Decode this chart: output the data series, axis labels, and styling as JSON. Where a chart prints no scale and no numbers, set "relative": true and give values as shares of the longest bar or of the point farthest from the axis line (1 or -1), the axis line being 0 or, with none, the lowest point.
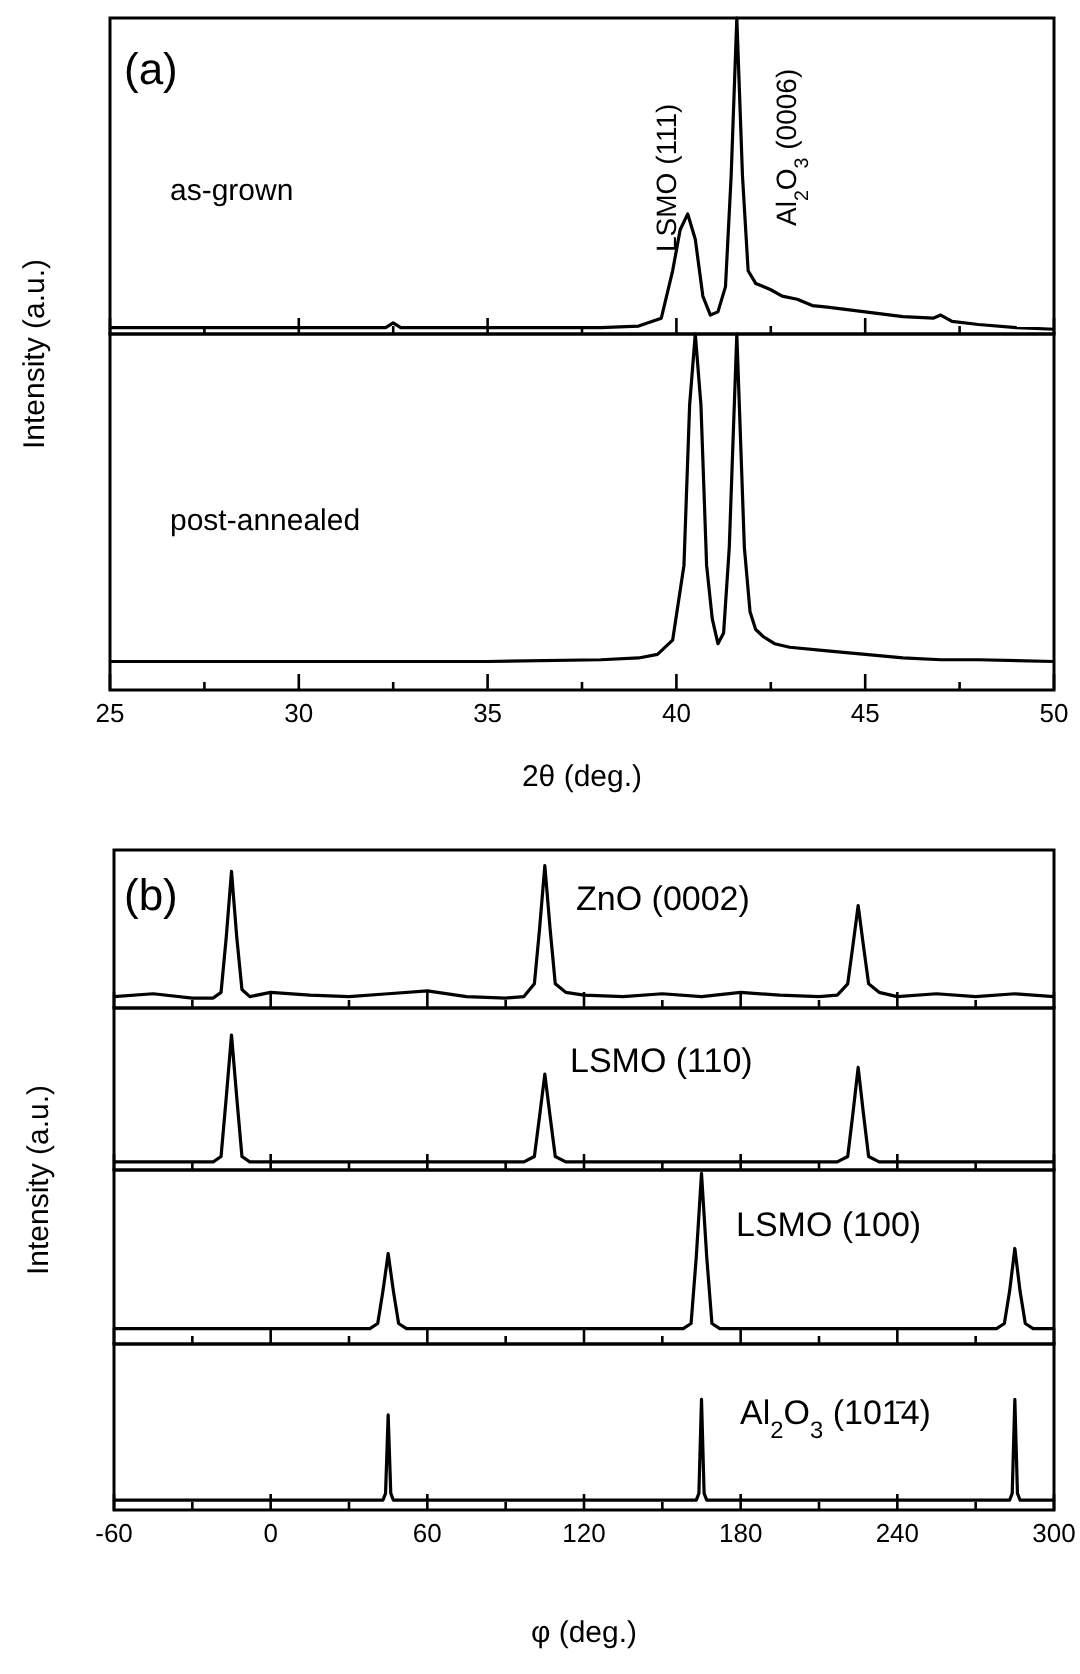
{
  "chart_data": [
    {
      "type": "line",
      "relative": true,
      "ylabel": "Intensity (a.u.)",
      "annotations": [
        "(a)",
        "as-grown",
        "LSMO (111)",
        "Al$_{2}$O$_{3}$ (0006)"
      ],
      "color": "#000000",
      "xlim": [
        25,
        50
      ],
      "xticks": [
        25,
        {
          "value": 27.5,
          "label": null
        },
        30,
        {
          "value": 32.5,
          "label": null
        },
        35,
        {
          "value": 37.5,
          "label": null
        },
        40,
        {
          "value": 42.5,
          "label": null
        },
        45,
        {
          "value": 47.5,
          "label": null
        },
        50
      ],
      "tick_labels": false,
      "x": [
        25,
        27,
        29,
        31,
        32.3,
        32.5,
        32.7,
        34,
        36,
        38,
        39,
        39.6,
        39.9,
        40.1,
        40.3,
        40.5,
        40.7,
        40.9,
        41.1,
        41.3,
        41.45,
        41.6,
        41.75,
        41.9,
        42.1,
        42.3,
        42.5,
        42.8,
        43.2,
        43.6,
        44,
        45,
        46,
        46.8,
        47,
        47.3,
        48,
        49,
        50
      ],
      "values": [
        0.02,
        0.02,
        0.02,
        0.02,
        0.02,
        0.035,
        0.02,
        0.02,
        0.02,
        0.02,
        0.025,
        0.05,
        0.2,
        0.33,
        0.38,
        0.3,
        0.12,
        0.06,
        0.07,
        0.15,
        0.5,
        1,
        0.5,
        0.2,
        0.16,
        0.15,
        0.14,
        0.12,
        0.11,
        0.09,
        0.085,
        0.07,
        0.055,
        0.05,
        0.06,
        0.04,
        0.03,
        0.02,
        0.015
      ]
    },
    {
      "type": "line",
      "relative": true,
      "xlabel": "2θ (deg.)",
      "annotations": [
        "post-annealed"
      ],
      "color": "#000000",
      "xlim": [
        25,
        50
      ],
      "xticks": [
        25,
        {
          "value": 27.5,
          "label": null
        },
        30,
        {
          "value": 32.5,
          "label": null
        },
        35,
        {
          "value": 37.5,
          "label": null
        },
        40,
        {
          "value": 42.5,
          "label": null
        },
        45,
        {
          "value": 47.5,
          "label": null
        },
        50
      ],
      "tick_labels": "x",
      "x": [
        25,
        30,
        35,
        38,
        39,
        39.5,
        39.9,
        40.2,
        40.35,
        40.5,
        40.65,
        40.8,
        40.95,
        41.1,
        41.25,
        41.4,
        41.6,
        41.8,
        41.95,
        42.1,
        42.3,
        42.6,
        43,
        44,
        45,
        46,
        47,
        48,
        50
      ],
      "values": [
        0.08,
        0.08,
        0.08,
        0.085,
        0.09,
        0.1,
        0.14,
        0.35,
        0.8,
        1,
        0.8,
        0.35,
        0.2,
        0.13,
        0.16,
        0.4,
        1,
        0.4,
        0.22,
        0.17,
        0.15,
        0.13,
        0.12,
        0.11,
        0.1,
        0.09,
        0.085,
        0.085,
        0.08
      ]
    },
    {
      "type": "line",
      "relative": true,
      "ylabel": "Intensity (a.u.)",
      "annotations": [
        "(b)",
        "ZnO (0002)"
      ],
      "color": "#000000",
      "xlim": [
        -60,
        300
      ],
      "xticks": [
        -60,
        {
          "value": -30,
          "label": null
        },
        0,
        {
          "value": 30,
          "label": null
        },
        60,
        {
          "value": 90,
          "label": null
        },
        120,
        {
          "value": 150,
          "label": null
        },
        180,
        {
          "value": 210,
          "label": null
        },
        240,
        {
          "value": 270,
          "label": null
        },
        300
      ],
      "tick_labels": false,
      "x": [
        -60,
        -45,
        -30,
        -22,
        -19,
        -17,
        -15,
        -13,
        -11,
        -8,
        0,
        15,
        30,
        45,
        60,
        75,
        90,
        97,
        101,
        103,
        105,
        107,
        109,
        113,
        120,
        135,
        150,
        165,
        180,
        195,
        210,
        217,
        221,
        223,
        225,
        227,
        229,
        233,
        240,
        255,
        270,
        285,
        300
      ],
      "values": [
        0.08,
        0.1,
        0.07,
        0.07,
        0.11,
        0.5,
        0.96,
        0.5,
        0.13,
        0.08,
        0.11,
        0.09,
        0.08,
        0.1,
        0.12,
        0.08,
        0.07,
        0.08,
        0.17,
        0.56,
        1,
        0.56,
        0.17,
        0.11,
        0.09,
        0.08,
        0.1,
        0.08,
        0.11,
        0.09,
        0.08,
        0.09,
        0.17,
        0.44,
        0.72,
        0.44,
        0.17,
        0.11,
        0.08,
        0.1,
        0.08,
        0.1,
        0.08
      ]
    },
    {
      "type": "line",
      "relative": true,
      "annotations": [
        "LSMO (110)"
      ],
      "color": "#000000",
      "xlim": [
        -60,
        300
      ],
      "xticks": [
        -60,
        {
          "value": -30,
          "label": null
        },
        0,
        {
          "value": 30,
          "label": null
        },
        60,
        {
          "value": 90,
          "label": null
        },
        120,
        {
          "value": 150,
          "label": null
        },
        180,
        {
          "value": 210,
          "label": null
        },
        240,
        {
          "value": 270,
          "label": null
        },
        300
      ],
      "tick_labels": false,
      "x": [
        -60,
        -30,
        -22,
        -19,
        -17,
        -15,
        -13,
        -11,
        -8,
        0,
        30,
        60,
        90,
        97,
        101,
        103,
        105,
        107,
        109,
        113,
        120,
        150,
        180,
        210,
        217,
        221,
        223,
        225,
        227,
        229,
        233,
        240,
        270,
        300
      ],
      "values": [
        0.06,
        0.06,
        0.06,
        0.1,
        0.54,
        1,
        0.54,
        0.1,
        0.06,
        0.06,
        0.06,
        0.06,
        0.06,
        0.06,
        0.1,
        0.4,
        0.71,
        0.4,
        0.1,
        0.06,
        0.06,
        0.06,
        0.06,
        0.06,
        0.06,
        0.1,
        0.42,
        0.76,
        0.42,
        0.1,
        0.06,
        0.06,
        0.06,
        0.06
      ]
    },
    {
      "type": "line",
      "relative": true,
      "annotations": [
        "LSMO (100)"
      ],
      "color": "#000000",
      "xlim": [
        -60,
        300
      ],
      "xticks": [
        -60,
        {
          "value": -30,
          "label": null
        },
        0,
        {
          "value": 30,
          "label": null
        },
        60,
        {
          "value": 90,
          "label": null
        },
        120,
        {
          "value": 150,
          "label": null
        },
        180,
        {
          "value": 210,
          "label": null
        },
        240,
        {
          "value": 270,
          "label": null
        },
        300
      ],
      "tick_labels": false,
      "x": [
        -60,
        0,
        30,
        38,
        41,
        43,
        45,
        47,
        49,
        52,
        60,
        120,
        158,
        161,
        163,
        165,
        167,
        169,
        172,
        180,
        240,
        278,
        281,
        283,
        285,
        287,
        289,
        292,
        300
      ],
      "values": [
        0.09,
        0.09,
        0.09,
        0.09,
        0.12,
        0.31,
        0.53,
        0.31,
        0.12,
        0.09,
        0.09,
        0.09,
        0.09,
        0.12,
        0.51,
        1,
        0.51,
        0.12,
        0.09,
        0.09,
        0.09,
        0.09,
        0.12,
        0.31,
        0.56,
        0.31,
        0.12,
        0.09,
        0.09
      ]
    },
    {
      "type": "line",
      "relative": true,
      "xlabel": "φ (deg.)",
      "annotations": [
        "Al$_{2}$O$_{3}$ (101̄4)"
      ],
      "color": "#000000",
      "xlim": [
        -60,
        300
      ],
      "xticks": [
        -60,
        {
          "value": -30,
          "label": null
        },
        0,
        {
          "value": 30,
          "label": null
        },
        60,
        {
          "value": 90,
          "label": null
        },
        120,
        {
          "value": 150,
          "label": null
        },
        180,
        {
          "value": 210,
          "label": null
        },
        240,
        {
          "value": 270,
          "label": null
        },
        300
      ],
      "tick_labels": "x",
      "x": [
        -60,
        0,
        43,
        44,
        45,
        46,
        47,
        60,
        120,
        163,
        164,
        165,
        166,
        167,
        180,
        240,
        283,
        284,
        285,
        286,
        287,
        300
      ],
      "values": [
        0.09,
        0.09,
        0.09,
        0.15,
        0.86,
        0.15,
        0.09,
        0.09,
        0.09,
        0.09,
        0.15,
        1,
        0.15,
        0.09,
        0.09,
        0.09,
        0.09,
        0.15,
        1,
        0.15,
        0.09,
        0.09
      ]
    }
  ]
}
